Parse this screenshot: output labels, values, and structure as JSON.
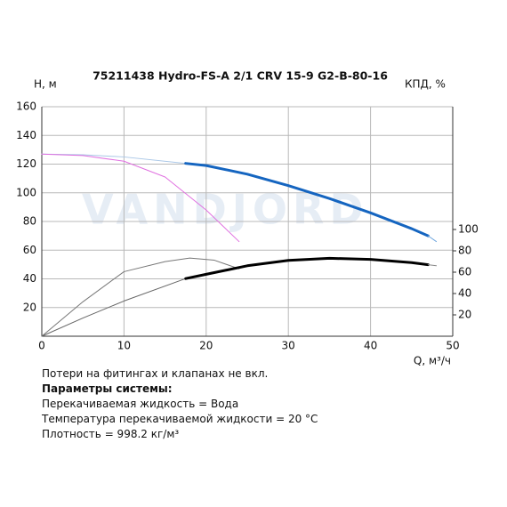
{
  "chart_data": {
    "type": "line",
    "title": "75211438 Hydro-FS-A 2/1 CRV 15-9 G2-B-80-16",
    "ylabel": "H, м",
    "y2label": "КПД, %",
    "xlabel": "Q, м³/ч",
    "watermark": "VANDJORD",
    "xlim": [
      0,
      50
    ],
    "xticks": [
      0,
      10,
      20,
      30,
      40,
      50
    ],
    "ylim": [
      0,
      160
    ],
    "yticks": [
      20,
      40,
      60,
      80,
      100,
      120,
      140,
      160
    ],
    "y2lim": [
      0,
      215
    ],
    "y2ticks": [
      20,
      40,
      60,
      80,
      100
    ],
    "grid": true,
    "series": [
      {
        "color": "#a9c6e6",
        "width": 1,
        "x": [
          0,
          5,
          10,
          17.5
        ],
        "values": [
          127,
          126.5,
          125,
          120.5
        ]
      },
      {
        "color": "#1565c0",
        "width": 3,
        "x": [
          17.5,
          20,
          25,
          30,
          35,
          40,
          45,
          47
        ],
        "values": [
          120.5,
          119,
          113,
          105,
          96,
          86,
          75,
          70
        ]
      },
      {
        "color": "#6fa6de",
        "width": 1,
        "x": [
          47,
          48
        ],
        "values": [
          70,
          66
        ]
      },
      {
        "color": "#e070e0",
        "width": 1,
        "x": [
          0,
          5,
          10,
          15,
          20,
          24
        ],
        "values": [
          127,
          126,
          122,
          111,
          88,
          66
        ]
      },
      {
        "color": "#777777",
        "width": 1,
        "x": [
          0,
          5,
          10,
          15,
          18,
          21,
          24
        ],
        "values": [
          0,
          24,
          45,
          52,
          54.5,
          53,
          47
        ]
      },
      {
        "color": "#666666",
        "width": 1,
        "axis": "y2",
        "x": [
          0,
          5,
          10,
          17.5
        ],
        "values": [
          0,
          17,
          33,
          54
        ]
      },
      {
        "color": "#000000",
        "width": 3,
        "axis": "y2",
        "x": [
          17.5,
          20,
          25,
          30,
          35,
          40,
          45,
          47
        ],
        "values": [
          54,
          58,
          66,
          71,
          73,
          72,
          69,
          67
        ]
      },
      {
        "color": "#888888",
        "width": 1,
        "axis": "y2",
        "x": [
          47,
          48
        ],
        "values": [
          67,
          66
        ]
      }
    ]
  },
  "notes": {
    "line1": "Потери на фитингах и клапанах не вкл.",
    "heading": "Параметры системы:",
    "line2": "Перекачиваемая жидкость = Вода",
    "line3": "Температура перекачиваемой жидкости = 20 °C",
    "line4": "Плотность = 998.2 кг/м³"
  }
}
